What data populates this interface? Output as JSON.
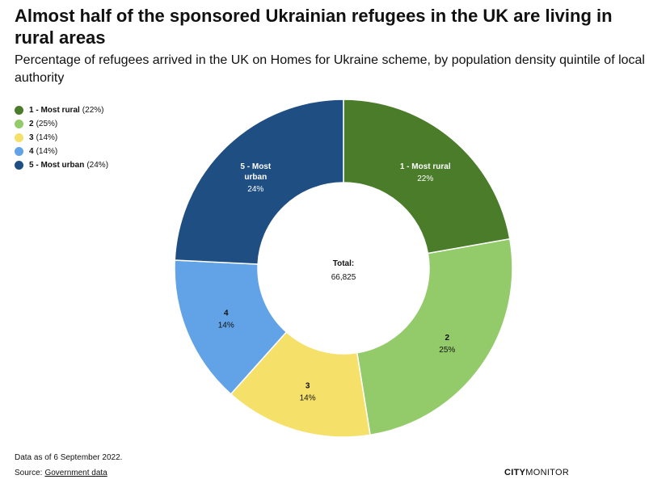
{
  "title": "Almost half of the sponsored Ukrainian refugees in the UK are living in rural areas",
  "subtitle": "Percentage of refugees arrived in the UK on Homes for Ukraine scheme, by population density quintile of local authority",
  "center": {
    "label": "Total:",
    "value": "66,825"
  },
  "note": "Data as of 6 September 2022.",
  "source": {
    "prefix": "Source:",
    "link": "Government data"
  },
  "brand": {
    "bold": "CITY",
    "normal": "MONITOR"
  },
  "chart_data": {
    "type": "pie",
    "variant": "donut",
    "title": "Almost half of the sponsored Ukrainian refugees in the UK are living in rural areas",
    "total": 66825,
    "legend_position": "top-left",
    "slices": [
      {
        "name": "1 - Most rural",
        "label_lines": [
          "1 - Most rural"
        ],
        "value": 22,
        "pct_text": "22%",
        "legend_pct": "(22%)",
        "color": "#4a7c2a",
        "text_color": "#ffffff"
      },
      {
        "name": "2",
        "label_lines": [
          "2"
        ],
        "value": 25,
        "pct_text": "25%",
        "legend_pct": "(25%)",
        "color": "#93cb6b",
        "text_color": "#111111"
      },
      {
        "name": "3",
        "label_lines": [
          "3"
        ],
        "value": 14,
        "pct_text": "14%",
        "legend_pct": "(14%)",
        "color": "#f5e06a",
        "text_color": "#111111"
      },
      {
        "name": "4",
        "label_lines": [
          "4"
        ],
        "value": 14,
        "pct_text": "14%",
        "legend_pct": "(14%)",
        "color": "#62a2e6",
        "text_color": "#111111"
      },
      {
        "name": "5 - Most urban",
        "label_lines": [
          "5 - Most",
          "urban"
        ],
        "value": 24,
        "pct_text": "24%",
        "legend_pct": "(24%)",
        "color": "#1f4e82",
        "text_color": "#ffffff"
      }
    ]
  }
}
